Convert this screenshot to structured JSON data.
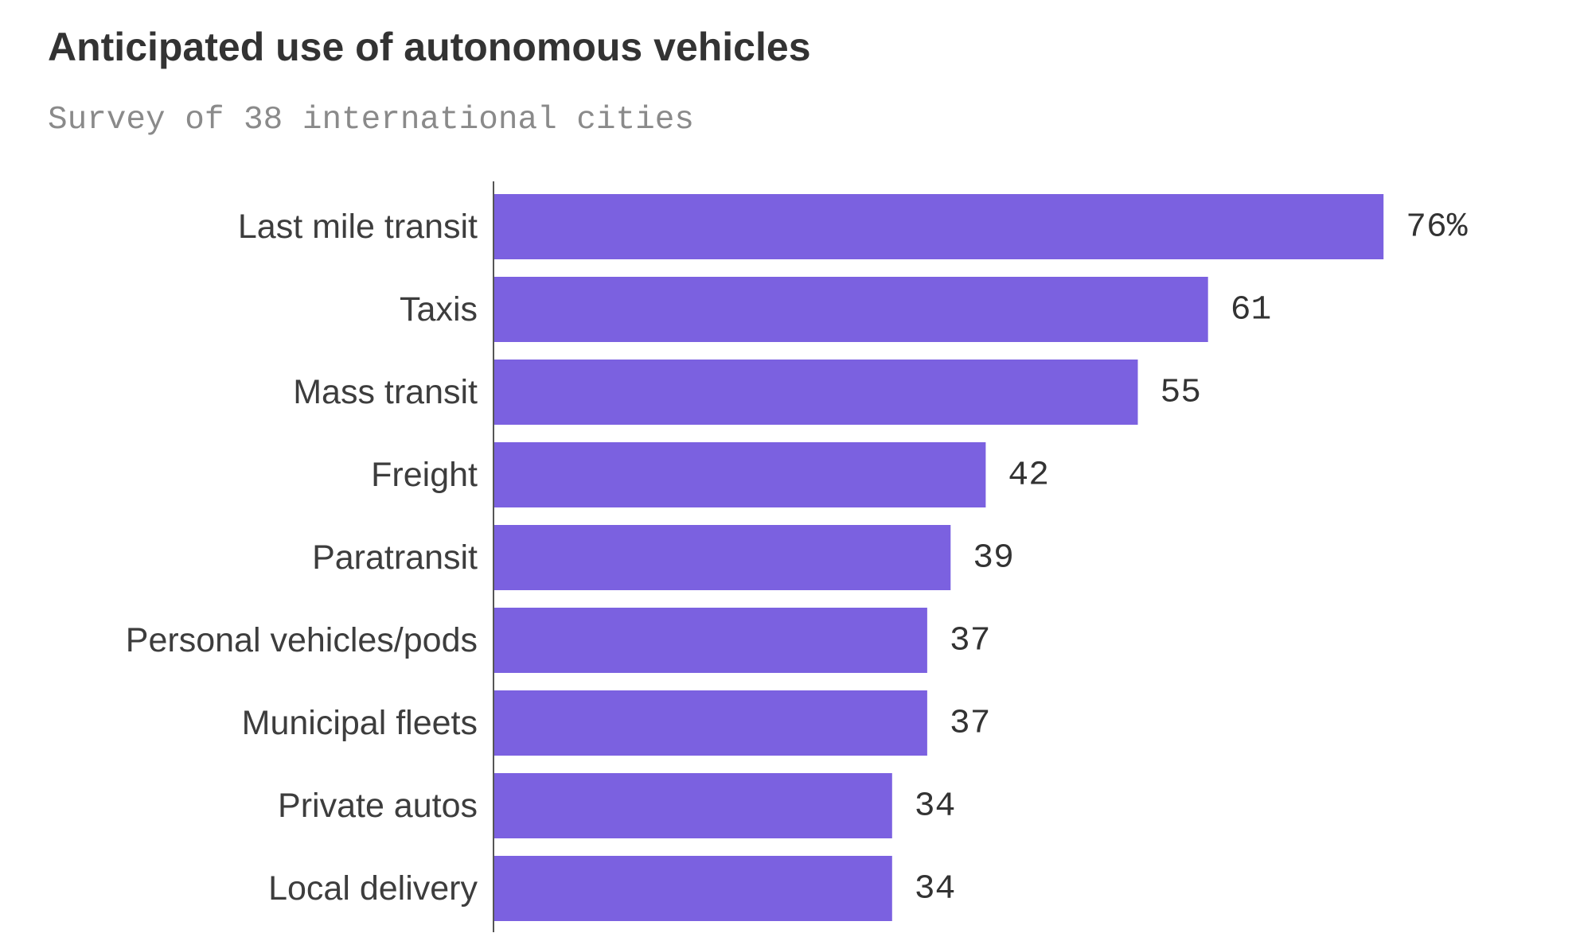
{
  "chart_data": {
    "type": "bar",
    "orientation": "horizontal",
    "title": "Anticipated use of autonomous vehicles",
    "subtitle": "Survey of 38 international cities",
    "categories": [
      "Last mile transit",
      "Taxis",
      "Mass transit",
      "Freight",
      "Paratransit",
      "Personal vehicles/pods",
      "Municipal fleets",
      "Private autos",
      "Local delivery"
    ],
    "values": [
      76,
      61,
      55,
      42,
      39,
      37,
      37,
      34,
      34
    ],
    "value_labels": [
      "76%",
      "61",
      "55",
      "42",
      "39",
      "37",
      "37",
      "34",
      "34"
    ],
    "unit": "%",
    "xlim": [
      0,
      100
    ],
    "grid": false,
    "bar_color": "#7b61e0"
  }
}
